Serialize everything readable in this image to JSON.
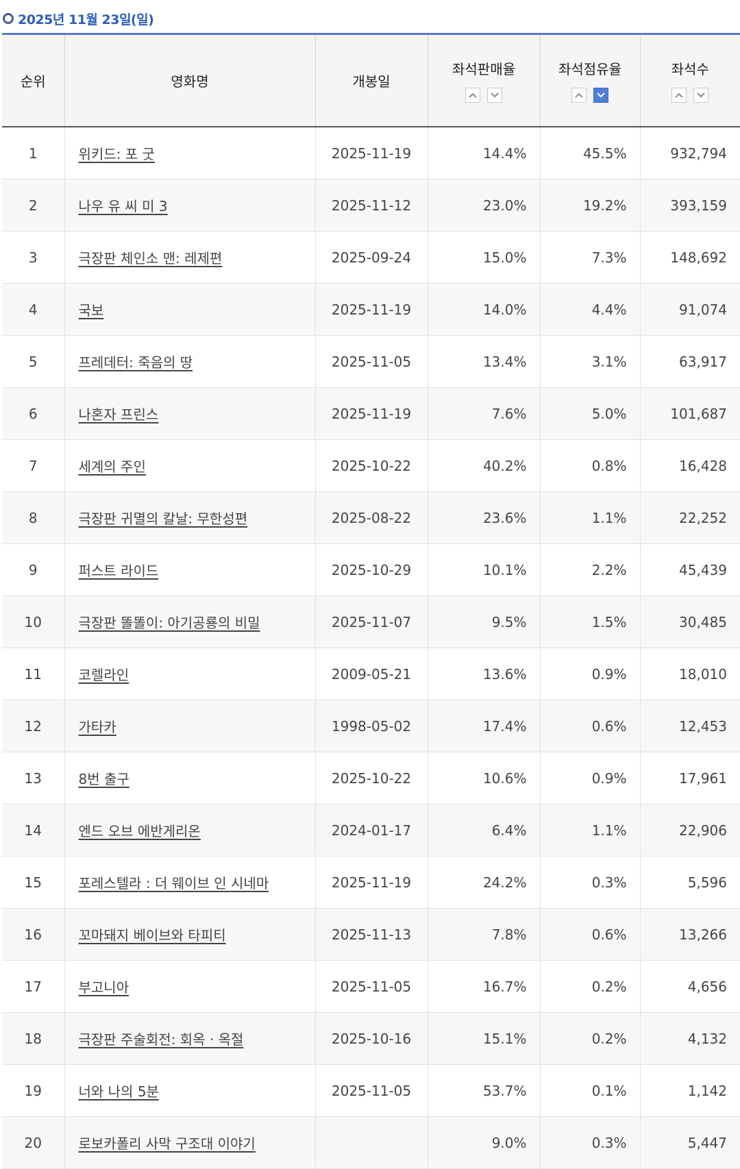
{
  "header": {
    "date": "2025년 11월 23일(일)"
  },
  "columns": {
    "rank": "순위",
    "title": "영화명",
    "release": "개봉일",
    "sales": "좌석판매율",
    "occupancy": "좌석점유율",
    "seats": "좌석수"
  },
  "sort_state": {
    "active_column": "occupancy",
    "active_direction": "down",
    "active_color": "#4e7ed6"
  },
  "rows": [
    {
      "rank": "1",
      "title": "위키드: 포 굿",
      "release": "2025-11-19",
      "sales": "14.4%",
      "occupancy": "45.5%",
      "seats": "932,794"
    },
    {
      "rank": "2",
      "title": "나우 유 씨 미 3",
      "release": "2025-11-12",
      "sales": "23.0%",
      "occupancy": "19.2%",
      "seats": "393,159"
    },
    {
      "rank": "3",
      "title": "극장판 체인소 맨: 레제편",
      "release": "2025-09-24",
      "sales": "15.0%",
      "occupancy": "7.3%",
      "seats": "148,692"
    },
    {
      "rank": "4",
      "title": "국보",
      "release": "2025-11-19",
      "sales": "14.0%",
      "occupancy": "4.4%",
      "seats": "91,074"
    },
    {
      "rank": "5",
      "title": "프레데터: 죽음의 땅",
      "release": "2025-11-05",
      "sales": "13.4%",
      "occupancy": "3.1%",
      "seats": "63,917"
    },
    {
      "rank": "6",
      "title": "나혼자 프린스",
      "release": "2025-11-19",
      "sales": "7.6%",
      "occupancy": "5.0%",
      "seats": "101,687"
    },
    {
      "rank": "7",
      "title": "세계의 주인",
      "release": "2025-10-22",
      "sales": "40.2%",
      "occupancy": "0.8%",
      "seats": "16,428"
    },
    {
      "rank": "8",
      "title": "극장판 귀멸의 칼날: 무한성편",
      "release": "2025-08-22",
      "sales": "23.6%",
      "occupancy": "1.1%",
      "seats": "22,252"
    },
    {
      "rank": "9",
      "title": "퍼스트 라이드",
      "release": "2025-10-29",
      "sales": "10.1%",
      "occupancy": "2.2%",
      "seats": "45,439"
    },
    {
      "rank": "10",
      "title": "극장판 똘똘이: 아기공룡의 비밀",
      "release": "2025-11-07",
      "sales": "9.5%",
      "occupancy": "1.5%",
      "seats": "30,485"
    },
    {
      "rank": "11",
      "title": "코렐라인",
      "release": "2009-05-21",
      "sales": "13.6%",
      "occupancy": "0.9%",
      "seats": "18,010"
    },
    {
      "rank": "12",
      "title": "가타카",
      "release": "1998-05-02",
      "sales": "17.4%",
      "occupancy": "0.6%",
      "seats": "12,453"
    },
    {
      "rank": "13",
      "title": "8번 출구",
      "release": "2025-10-22",
      "sales": "10.6%",
      "occupancy": "0.9%",
      "seats": "17,961"
    },
    {
      "rank": "14",
      "title": "엔드 오브 에반게리온",
      "release": "2024-01-17",
      "sales": "6.4%",
      "occupancy": "1.1%",
      "seats": "22,906"
    },
    {
      "rank": "15",
      "title": "포레스텔라 : 더 웨이브 인 시네마",
      "release": "2025-11-19",
      "sales": "24.2%",
      "occupancy": "0.3%",
      "seats": "5,596"
    },
    {
      "rank": "16",
      "title": "꼬마돼지 베이브와 타피티",
      "release": "2025-11-13",
      "sales": "7.8%",
      "occupancy": "0.6%",
      "seats": "13,266"
    },
    {
      "rank": "17",
      "title": "부고니아",
      "release": "2025-11-05",
      "sales": "16.7%",
      "occupancy": "0.2%",
      "seats": "4,656"
    },
    {
      "rank": "18",
      "title": "극장판 주술회전: 회옥 · 옥절",
      "release": "2025-10-16",
      "sales": "15.1%",
      "occupancy": "0.2%",
      "seats": "4,132"
    },
    {
      "rank": "19",
      "title": "너와 나의 5분",
      "release": "2025-11-05",
      "sales": "53.7%",
      "occupancy": "0.1%",
      "seats": "1,142"
    },
    {
      "rank": "20",
      "title": "로보카폴리 사막 구조대 이야기",
      "release": "",
      "sales": "9.0%",
      "occupancy": "0.3%",
      "seats": "5,447"
    }
  ]
}
